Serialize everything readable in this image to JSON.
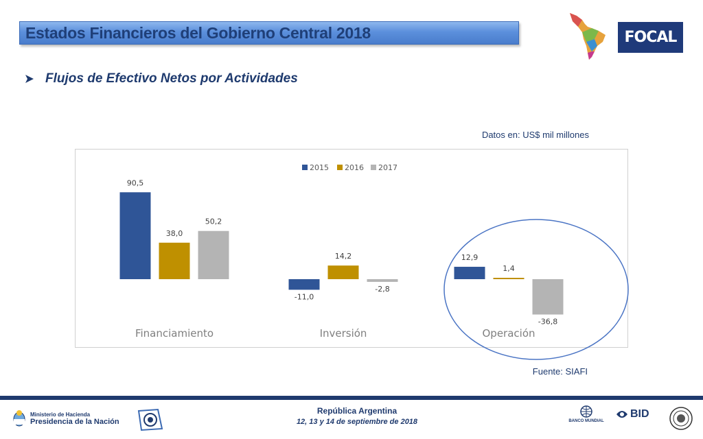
{
  "header": {
    "title": "Estados Financieros del Gobierno Central 2018",
    "logo_text": "FOCAL"
  },
  "subtitle": "Flujos de Efectivo Netos por Actividades",
  "units_note": "Datos en: US$ mil millones",
  "source_note": "Fuente: SIAFI",
  "footer": {
    "ministerio": "Ministerio de Hacienda",
    "presidencia": "Presidencia de la Nación",
    "country": "República Argentina",
    "dates": "12, 13 y 14 de septiembre de 2018",
    "bm_label": "BANCO MUNDIAL",
    "bid_label": "BID"
  },
  "colors": {
    "title_text": "#1f3f78",
    "series_2015": "#2f5597",
    "series_2016": "#bf9000",
    "series_2017": "#b4b4b4",
    "highlight_circle": "#4a74c4"
  },
  "icons": {
    "subtitle_bullet": "arrow-right-icon",
    "map": "latin-america-map-icon",
    "escudo": "argentina-escudo-icon",
    "ifac": "ifac-logo-icon",
    "bm": "world-bank-globe-icon",
    "bid": "bid-logo-icon",
    "fmi": "imf-seal-icon"
  },
  "chart_data": {
    "type": "bar",
    "categories": [
      "Financiamiento",
      "Inversión",
      "Operación"
    ],
    "series": [
      {
        "name": "2015",
        "values": [
          90.5,
          -11.0,
          12.9
        ],
        "labels": [
          "90,5",
          "-11,0",
          "12,9"
        ]
      },
      {
        "name": "2016",
        "values": [
          38.0,
          14.2,
          1.4
        ],
        "labels": [
          "38,0",
          "14,2",
          "1,4"
        ]
      },
      {
        "name": "2017",
        "values": [
          50.2,
          -2.8,
          -36.8
        ],
        "labels": [
          "50,2",
          "-2,8",
          "-36,8"
        ]
      }
    ],
    "legend_position": "top-center",
    "grid": false,
    "ylim": [
      -40,
      100
    ],
    "highlight_category": "Operación"
  }
}
